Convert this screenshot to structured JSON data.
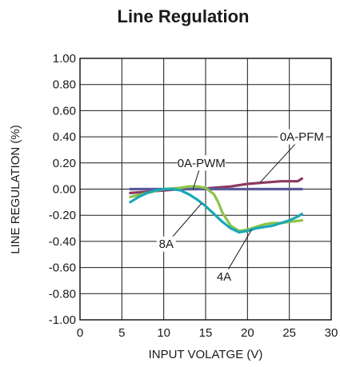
{
  "chart_data": {
    "type": "line",
    "title": "Line Regulation",
    "xlabel": "INPUT VOLATGE (V)",
    "ylabel": "LINE REGULATION (%)",
    "xlim": [
      0,
      30
    ],
    "ylim": [
      -1.0,
      1.0
    ],
    "x_ticks": [
      0,
      5,
      10,
      15,
      20,
      25,
      30
    ],
    "x_tick_labels": [
      "0",
      "5",
      "10",
      "15",
      "20",
      "25",
      "30"
    ],
    "y_ticks": [
      1.0,
      0.8,
      0.6,
      0.4,
      0.2,
      0.0,
      -0.2,
      -0.4,
      -0.6,
      -0.8,
      -1.0
    ],
    "y_tick_labels": [
      "1.00",
      "0.80",
      "0.60",
      "0.40",
      "0.20",
      "0.00",
      "-0.20",
      "-0.40",
      "-0.60",
      "-0.80",
      "-1.00"
    ],
    "grid": true,
    "series": [
      {
        "name": "0A-PFM",
        "color": "#8b3a62",
        "x": [
          6,
          8,
          10,
          12,
          14,
          16,
          18,
          20,
          22,
          24,
          26,
          26.5
        ],
        "y": [
          -0.03,
          -0.02,
          -0.01,
          0.0,
          0.0,
          0.01,
          0.02,
          0.04,
          0.05,
          0.06,
          0.06,
          0.08
        ]
      },
      {
        "name": "0A-PWM",
        "color": "#5a5a9a",
        "x": [
          6,
          10,
          15,
          20,
          25,
          26.5
        ],
        "y": [
          0.0,
          0.0,
          0.0,
          0.0,
          0.0,
          0.0
        ]
      },
      {
        "name": "4A",
        "color": "#8bc34a",
        "x": [
          6,
          8,
          10,
          12,
          13,
          14,
          15,
          16,
          16.5,
          17,
          18,
          19,
          20,
          21,
          22,
          23,
          24,
          25,
          26.5
        ],
        "y": [
          -0.06,
          -0.03,
          0.0,
          0.01,
          0.02,
          0.02,
          0.01,
          -0.04,
          -0.1,
          -0.18,
          -0.28,
          -0.32,
          -0.31,
          -0.29,
          -0.27,
          -0.26,
          -0.26,
          -0.25,
          -0.24
        ]
      },
      {
        "name": "8A",
        "color": "#1aa8b8",
        "x": [
          6,
          7,
          8,
          9,
          10,
          11,
          12,
          13,
          14,
          15,
          16,
          17,
          18,
          19,
          20,
          21,
          22,
          23,
          24,
          25,
          26,
          26.5
        ],
        "y": [
          -0.1,
          -0.06,
          -0.03,
          -0.01,
          0.0,
          0.0,
          -0.01,
          -0.04,
          -0.08,
          -0.13,
          -0.19,
          -0.25,
          -0.3,
          -0.33,
          -0.32,
          -0.3,
          -0.29,
          -0.28,
          -0.26,
          -0.24,
          -0.21,
          -0.19
        ]
      }
    ],
    "annotations": [
      {
        "text": "0A-PFM",
        "series": "0A-PFM",
        "label_at": [
          26.5,
          0.4
        ],
        "points_to": [
          21.5,
          0.05
        ]
      },
      {
        "text": "0A-PWM",
        "series": "0A-PWM",
        "label_at": [
          14.5,
          0.2
        ],
        "points_to": [
          13.5,
          0.0
        ]
      },
      {
        "text": "8A",
        "series": "8A",
        "label_at": [
          10.3,
          -0.42
        ],
        "points_to": [
          14.5,
          -0.11
        ]
      },
      {
        "text": "4A",
        "series": "4A",
        "label_at": [
          17.2,
          -0.67
        ],
        "points_to": [
          20.5,
          -0.31
        ]
      }
    ]
  }
}
